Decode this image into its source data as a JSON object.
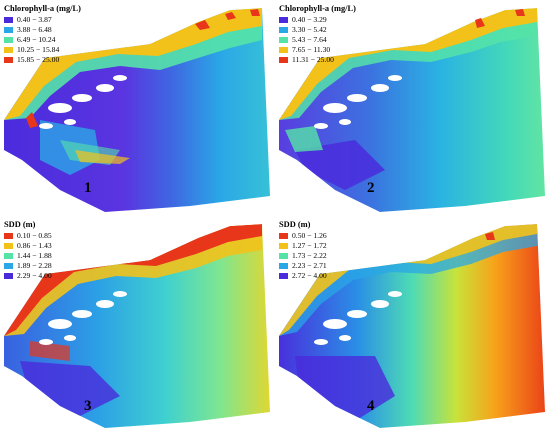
{
  "panels": [
    {
      "number": "1",
      "legend": {
        "title": "Chlorophyll-a (mg/L)",
        "items": [
          {
            "label": "0.40 − 3.87",
            "color": "#4a2bdc"
          },
          {
            "label": "3.88 − 6.48",
            "color": "#2aa7e6"
          },
          {
            "label": "6.49 − 10.24",
            "color": "#55e3a8"
          },
          {
            "label": "10.25 − 15.84",
            "color": "#f2c21a"
          },
          {
            "label": "15.85 − 25.00",
            "color": "#e8361a"
          }
        ]
      }
    },
    {
      "number": "2",
      "legend": {
        "title": "Chlorophyll-a (mg/L)",
        "items": [
          {
            "label": "0.40 − 3.29",
            "color": "#4a2bdc"
          },
          {
            "label": "3.30 − 5.42",
            "color": "#2aa7e6"
          },
          {
            "label": "5.43 − 7.64",
            "color": "#55e3a8"
          },
          {
            "label": "7.65 − 11.30",
            "color": "#f2c21a"
          },
          {
            "label": "11.31 − 25.00",
            "color": "#e8361a"
          }
        ]
      }
    },
    {
      "number": "3",
      "legend": {
        "title": "SDD (m)",
        "items": [
          {
            "label": "0.10 − 0.85",
            "color": "#e8361a"
          },
          {
            "label": "0.86 − 1.43",
            "color": "#f2c21a"
          },
          {
            "label": "1.44 − 1.88",
            "color": "#55e3a8"
          },
          {
            "label": "1.89 − 2.28",
            "color": "#2aa7e6"
          },
          {
            "label": "2.29 − 4.00",
            "color": "#4a2bdc"
          }
        ]
      }
    },
    {
      "number": "4",
      "legend": {
        "title": "SDD (m)",
        "items": [
          {
            "label": "0.50 − 1.26",
            "color": "#e8361a"
          },
          {
            "label": "1.27 − 1.72",
            "color": "#f2c21a"
          },
          {
            "label": "1.73 − 2.22",
            "color": "#55e3a8"
          },
          {
            "label": "2.23 − 2.71",
            "color": "#2aa7e6"
          },
          {
            "label": "2.72 − 4.00",
            "color": "#4a2bdc"
          }
        ]
      }
    }
  ]
}
